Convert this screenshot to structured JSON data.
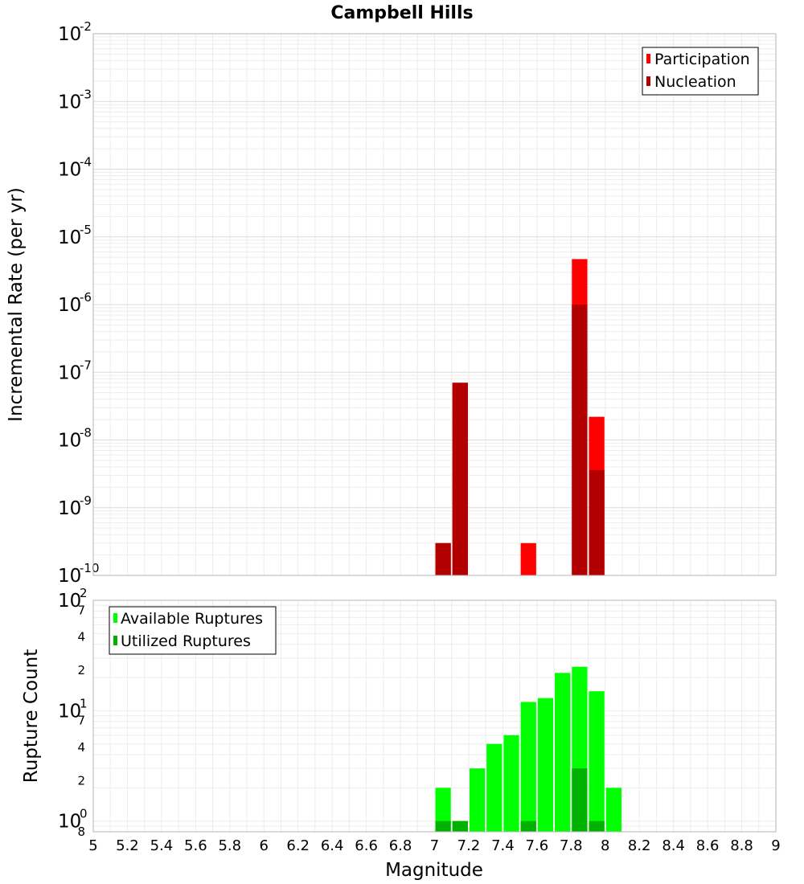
{
  "chart_data": [
    {
      "type": "bar",
      "title": "Campbell Hills",
      "xlabel": "",
      "ylabel": "Incremental Rate (per yr)",
      "yscale": "log",
      "xlim": [
        5,
        9
      ],
      "ylim": [
        1e-10,
        0.01
      ],
      "y_ticks": [
        {
          "base": "10",
          "exp": "-10",
          "value": 1e-10
        },
        {
          "base": "10",
          "exp": "-9",
          "value": 1e-09
        },
        {
          "base": "10",
          "exp": "-8",
          "value": 1e-08
        },
        {
          "base": "10",
          "exp": "-7",
          "value": 1e-07
        },
        {
          "base": "10",
          "exp": "-6",
          "value": 1e-06
        },
        {
          "base": "10",
          "exp": "-5",
          "value": 1e-05
        },
        {
          "base": "10",
          "exp": "-4",
          "value": 0.0001
        },
        {
          "base": "10",
          "exp": "-3",
          "value": 0.001
        },
        {
          "base": "10",
          "exp": "-2",
          "value": 0.01
        }
      ],
      "grid": true,
      "legend_position": "top-right",
      "series": [
        {
          "name": "Participation",
          "color": "#ff0000",
          "points": [
            [
              7.05,
              3e-10
            ],
            [
              7.15,
              7e-08
            ],
            [
              7.55,
              3e-10
            ],
            [
              7.85,
              4.7e-06
            ],
            [
              7.95,
              2.2e-08
            ]
          ]
        },
        {
          "name": "Nucleation",
          "color": "#b20000",
          "points": [
            [
              7.05,
              3e-10
            ],
            [
              7.15,
              7e-08
            ],
            [
              7.85,
              1e-06
            ],
            [
              7.95,
              3.6e-09
            ]
          ]
        }
      ]
    },
    {
      "type": "bar",
      "title": "",
      "xlabel": "Magnitude",
      "ylabel": "Rupture Count",
      "yscale": "log",
      "xlim": [
        5,
        9
      ],
      "ylim": [
        0.8,
        100
      ],
      "x_ticks": [
        "5",
        "5.2",
        "5.4",
        "5.6",
        "5.8",
        "6",
        "6.2",
        "6.4",
        "6.6",
        "6.8",
        "7",
        "7.2",
        "7.4",
        "7.6",
        "7.8",
        "8",
        "8.2",
        "8.4",
        "8.6",
        "8.8",
        "9"
      ],
      "y_major_ticks": [
        {
          "base": "10",
          "exp": "0",
          "value": 1
        },
        {
          "base": "10",
          "exp": "1",
          "value": 10
        },
        {
          "base": "10",
          "exp": "2",
          "value": 100
        }
      ],
      "y_minor_ticks": [
        {
          "label": "8",
          "value": 0.8
        },
        {
          "label": "2",
          "value": 2
        },
        {
          "label": "4",
          "value": 4
        },
        {
          "label": "7",
          "value": 7
        },
        {
          "label": "2",
          "value": 20
        },
        {
          "label": "4",
          "value": 40
        },
        {
          "label": "7",
          "value": 70
        }
      ],
      "grid": true,
      "legend_position": "top-left",
      "series": [
        {
          "name": "Available Ruptures",
          "color": "#00ff00",
          "points": [
            [
              7.05,
              2
            ],
            [
              7.15,
              1
            ],
            [
              7.25,
              3
            ],
            [
              7.35,
              5
            ],
            [
              7.45,
              6
            ],
            [
              7.55,
              12
            ],
            [
              7.65,
              13
            ],
            [
              7.75,
              22
            ],
            [
              7.85,
              25
            ],
            [
              7.95,
              15
            ],
            [
              8.05,
              2
            ]
          ]
        },
        {
          "name": "Utilized Ruptures",
          "color": "#00b200",
          "points": [
            [
              7.05,
              1
            ],
            [
              7.15,
              1
            ],
            [
              7.55,
              1
            ],
            [
              7.85,
              3
            ],
            [
              7.95,
              1
            ]
          ]
        }
      ]
    }
  ]
}
